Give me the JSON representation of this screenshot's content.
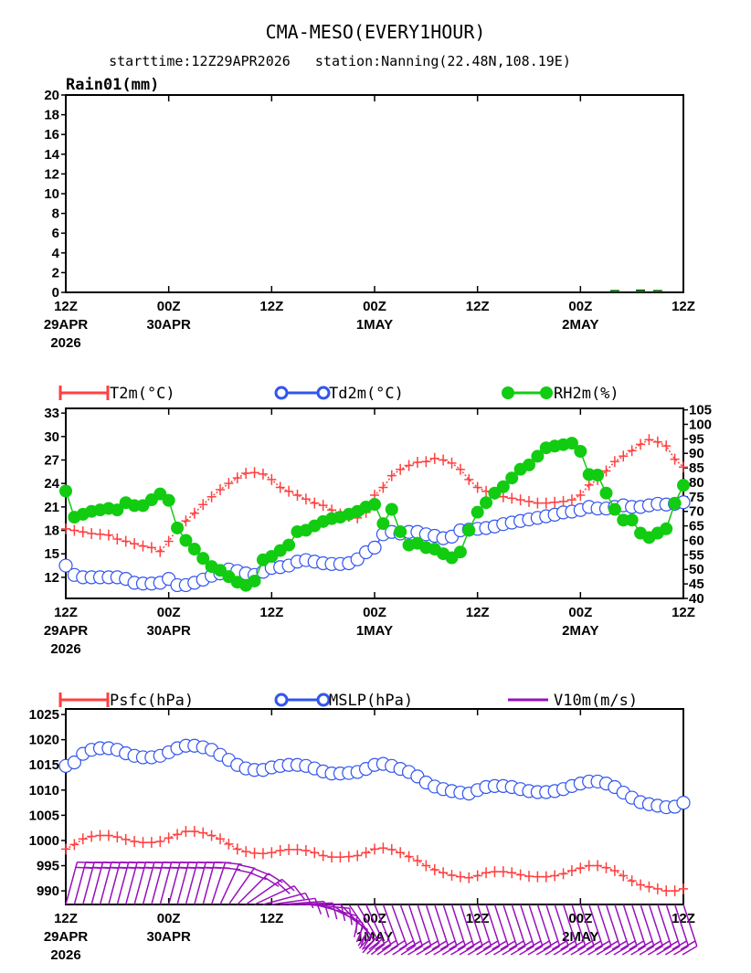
{
  "header": {
    "title": "CMA-MESO(EVERY1HOUR)",
    "subtitle": "starttime:12Z29APR2026   station:Nanning(22.48N,108.19E)"
  },
  "colors": {
    "t2m": "#ff4040",
    "td2m": "#3355ee",
    "rh2m": "#11cc11",
    "psfc": "#ff4040",
    "mslp": "#3355ee",
    "wind": "#9911bb",
    "rain": "#006600"
  },
  "xaxis": {
    "hours": [
      0,
      12,
      24,
      36,
      48,
      60,
      72
    ],
    "labels": [
      [
        "12Z",
        "29APR",
        "2026"
      ],
      [
        "00Z",
        "30APR"
      ],
      [
        "12Z"
      ],
      [
        "00Z",
        "1MAY"
      ],
      [
        "12Z"
      ],
      [
        "00Z",
        "2MAY"
      ],
      [
        "12Z"
      ]
    ]
  },
  "chart_data": [
    {
      "type": "bar",
      "title": "Rain01(mm)",
      "ylabel": "Rain01(mm)",
      "ylim": [
        0,
        20
      ],
      "yticks": [
        0,
        2,
        4,
        6,
        8,
        10,
        12,
        14,
        16,
        18,
        20
      ],
      "x_hours_range": [
        0,
        72
      ],
      "bars": [
        {
          "hour": 64,
          "value": 0.1
        },
        {
          "hour": 67,
          "value": 0.15
        },
        {
          "hour": 69,
          "value": 0.1
        }
      ]
    },
    {
      "type": "line",
      "legend": [
        "T2m(°C)",
        "Td2m(°C)",
        "RH2m(%)"
      ],
      "ylim": [
        9.3,
        33.6
      ],
      "yticks": [
        12,
        15,
        18,
        21,
        24,
        27,
        30,
        33
      ],
      "y2lim": [
        40,
        105.5
      ],
      "y2ticks": [
        40,
        45,
        50,
        55,
        60,
        65,
        70,
        75,
        80,
        85,
        90,
        95,
        100,
        105
      ],
      "x_hours_range": [
        0,
        72
      ],
      "series": [
        {
          "name": "T2m",
          "axis": "left",
          "values": [
            18.2,
            18,
            17.8,
            17.6,
            17.5,
            17.4,
            16.9,
            16.6,
            16.3,
            16,
            15.8,
            15.3,
            16.6,
            18.2,
            19.2,
            20.2,
            21.3,
            22.3,
            23.2,
            24,
            24.7,
            25.3,
            25.4,
            25.2,
            24.5,
            23.5,
            23,
            22.5,
            22,
            21.5,
            21.2,
            20.6,
            20.1,
            19.8,
            19.6,
            20.3,
            22.5,
            23.5,
            25,
            25.8,
            26.3,
            26.7,
            26.8,
            27.2,
            27,
            26.6,
            25.8,
            24.5,
            23.5,
            23,
            22.6,
            22.3,
            22.1,
            21.9,
            21.7,
            21.5,
            21.5,
            21.6,
            21.7,
            21.9,
            22.5,
            23.8,
            24.5,
            25.6,
            26.8,
            27.5,
            28.2,
            29,
            29.6,
            29.3,
            28.8,
            27.1,
            26.1
          ]
        },
        {
          "name": "Td2m",
          "axis": "left",
          "values": [
            13.5,
            12.3,
            12,
            12,
            12,
            12,
            12,
            11.8,
            11.3,
            11.2,
            11.2,
            11.3,
            11.8,
            11,
            11,
            11.3,
            11.7,
            12.2,
            12.5,
            13,
            12.8,
            12.5,
            12.3,
            12.7,
            13.2,
            13.3,
            13.5,
            14,
            14.2,
            14,
            13.8,
            13.7,
            13.7,
            13.8,
            14.3,
            15.2,
            15.8,
            17.5,
            17.8,
            17.6,
            17.8,
            17.8,
            17.5,
            17.3,
            17,
            17.2,
            18,
            18.1,
            18.2,
            18.3,
            18.5,
            18.8,
            19,
            19.2,
            19.4,
            19.6,
            19.8,
            20,
            20.3,
            20.4,
            20.6,
            21,
            20.8,
            20.8,
            21,
            21.2,
            21,
            21,
            21.2,
            21.4,
            21.3,
            21.4,
            21.6
          ]
        },
        {
          "name": "RH2m",
          "axis": "right",
          "values": [
            77,
            68,
            69,
            70,
            70.5,
            71,
            70.5,
            73,
            72,
            72,
            74,
            76,
            73.8,
            64.3,
            60,
            57,
            53.8,
            51,
            49.7,
            47.5,
            45.6,
            44.5,
            46,
            53.3,
            54.5,
            56.5,
            58.4,
            63,
            63.5,
            65,
            66.5,
            67.5,
            68,
            69,
            70,
            71.5,
            72.4,
            65.8,
            70.7,
            63,
            58.4,
            59,
            57.5,
            57,
            55.4,
            54,
            56,
            63.5,
            69.7,
            73,
            76.3,
            78.5,
            81.5,
            84.5,
            86,
            89,
            91.9,
            92.5,
            93,
            93.5,
            90.7,
            82.7,
            82.5,
            76.3,
            70.7,
            67,
            67,
            62.5,
            61,
            62.5,
            64,
            72.8,
            79
          ]
        }
      ]
    },
    {
      "type": "line",
      "legend": [
        "Psfc(hPa)",
        "MSLP(hPa)",
        "V10m(m/s)"
      ],
      "ylim": [
        987.3,
        1026.1
      ],
      "yticks": [
        990,
        995,
        1000,
        1005,
        1010,
        1015,
        1020,
        1025
      ],
      "x_hours_range": [
        0,
        72
      ],
      "series": [
        {
          "name": "Psfc",
          "values": [
            998.3,
            999.2,
            1000.3,
            1000.8,
            1001,
            1001,
            1000.7,
            1000.2,
            999.8,
            999.6,
            999.6,
            999.8,
            1000.5,
            1001.2,
            1001.8,
            1001.8,
            1001.5,
            1001,
            1000.3,
            999.3,
            998.3,
            997.8,
            997.5,
            997.4,
            997.6,
            998,
            998.2,
            998.2,
            998,
            997.6,
            997,
            996.7,
            996.7,
            996.8,
            997,
            997.6,
            998.3,
            998.5,
            998.2,
            997.6,
            996.8,
            996,
            995,
            994.2,
            993.6,
            993.1,
            992.8,
            992.6,
            993,
            993.6,
            993.8,
            993.8,
            993.6,
            993.2,
            992.9,
            992.8,
            992.8,
            993,
            993.4,
            994,
            994.5,
            995,
            995,
            994.6,
            994,
            993,
            992,
            991.2,
            990.8,
            990.4,
            990,
            990,
            990.4
          ]
        },
        {
          "name": "MSLP",
          "values": [
            1014.8,
            1015.5,
            1017.2,
            1018,
            1018.3,
            1018.3,
            1018,
            1017.3,
            1016.8,
            1016.5,
            1016.5,
            1016.8,
            1017.5,
            1018.3,
            1018.8,
            1018.8,
            1018.5,
            1018,
            1017,
            1016,
            1015,
            1014.3,
            1014,
            1014,
            1014.5,
            1014.8,
            1015,
            1015,
            1014.8,
            1014.3,
            1013.7,
            1013.3,
            1013.3,
            1013.4,
            1013.6,
            1014.2,
            1015,
            1015.2,
            1014.8,
            1014.2,
            1013.6,
            1012.7,
            1011.5,
            1010.7,
            1010.2,
            1009.8,
            1009.5,
            1009.3,
            1010,
            1010.6,
            1010.8,
            1010.8,
            1010.6,
            1010.2,
            1009.8,
            1009.6,
            1009.6,
            1009.8,
            1010.2,
            1010.8,
            1011.3,
            1011.7,
            1011.7,
            1011.3,
            1010.6,
            1009.5,
            1008.5,
            1007.6,
            1007.2,
            1006.9,
            1006.6,
            1006.7,
            1007.5
          ]
        },
        {
          "name": "V10m",
          "kind": "wind_barbs",
          "direction_deg": [
            15,
            15,
            15,
            15,
            15,
            15,
            15,
            15,
            15,
            15,
            15,
            15,
            15,
            15,
            15,
            15,
            15,
            18,
            25,
            35,
            45,
            55,
            65,
            75,
            82,
            86,
            88,
            90,
            95,
            105,
            115,
            125,
            135,
            145,
            150,
            155,
            158,
            160,
            160,
            160,
            162,
            162,
            162,
            162,
            162,
            162,
            162,
            162,
            162,
            162,
            162,
            162,
            162,
            162,
            162,
            162,
            162,
            162,
            162,
            162,
            162,
            162,
            162,
            162,
            162,
            162,
            162,
            162,
            162,
            162,
            162,
            162,
            162
          ],
          "speed_ms": [
            8,
            8,
            9,
            9,
            9,
            9,
            9,
            8,
            8,
            8,
            8,
            8,
            9,
            9,
            9,
            9,
            8,
            8,
            7,
            7,
            6,
            6,
            5,
            5,
            5,
            4,
            4,
            4,
            5,
            5,
            6,
            6,
            7,
            7,
            8,
            8,
            8,
            8,
            8,
            8,
            8,
            8,
            8,
            8,
            8,
            8,
            8,
            8,
            8,
            8,
            8,
            8,
            8,
            8,
            8,
            8,
            8,
            8,
            8,
            8,
            8,
            8,
            8,
            8,
            8,
            8,
            8,
            8,
            8,
            8,
            8,
            8,
            8
          ]
        }
      ]
    }
  ]
}
